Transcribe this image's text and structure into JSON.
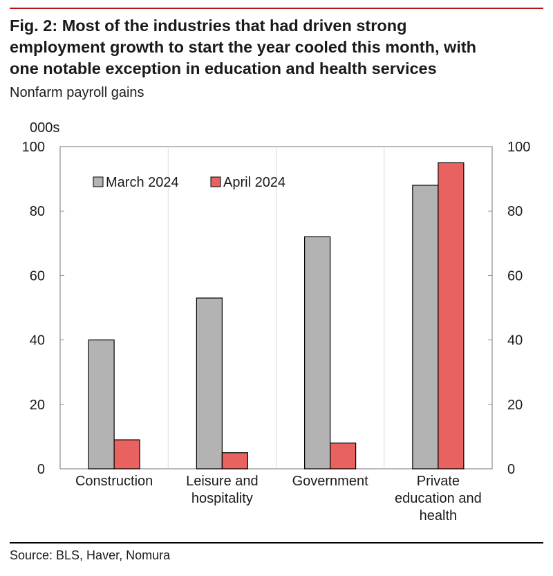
{
  "header": {
    "title_lines": [
      "Fig. 2: Most of the industries that had driven strong",
      "employment growth to start the year cooled this month, with",
      "one notable exception in education and health services"
    ],
    "subtitle": "Nonfarm payroll gains"
  },
  "footer": {
    "source": "Source: BLS, Haver, Nomura"
  },
  "chart_data": {
    "type": "bar",
    "unit_label": "000s",
    "categories": [
      [
        "Construction"
      ],
      [
        "Leisure and",
        "hospitality"
      ],
      [
        "Government"
      ],
      [
        "Private",
        "education and",
        "health"
      ]
    ],
    "series": [
      {
        "name": "March 2024",
        "color": "#b3b3b3",
        "values": [
          40,
          53,
          72,
          88
        ]
      },
      {
        "name": "April 2024",
        "color": "#e8625f",
        "values": [
          9,
          5,
          8,
          95
        ]
      }
    ],
    "ylim": [
      0,
      100
    ],
    "yticks": [
      0,
      20,
      40,
      60,
      80,
      100
    ],
    "legend_position": "top-left",
    "right_axis": true,
    "grid": "vertical-separators"
  }
}
